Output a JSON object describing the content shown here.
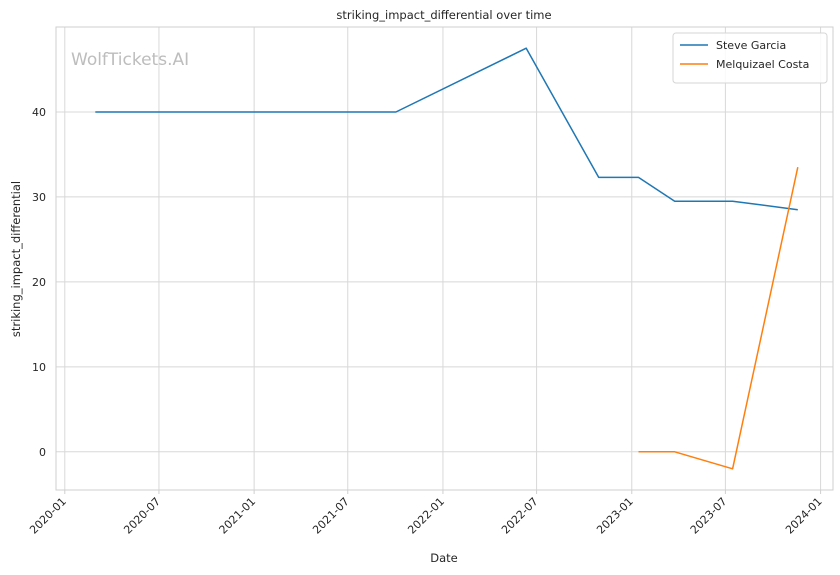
{
  "watermark": "WolfTickets.AI",
  "chart_data": {
    "type": "line",
    "title": "striking_impact_differential over time",
    "xlabel": "Date",
    "ylabel": "striking_impact_differential",
    "x_axis_type": "date",
    "xlim": [
      "2019-12-15",
      "2024-01-25"
    ],
    "ylim": [
      -4.5,
      50
    ],
    "x_ticks": [
      "2020-01",
      "2020-07",
      "2021-01",
      "2021-07",
      "2022-01",
      "2022-07",
      "2023-01",
      "2023-07",
      "2024-01"
    ],
    "x_tick_labels": [
      "2020-01",
      "2020-07",
      "2021-01",
      "2021-07",
      "2022-01",
      "2022-07",
      "2023-01",
      "2023-07",
      "2024-01"
    ],
    "y_ticks": [
      0,
      10,
      20,
      30,
      40
    ],
    "grid": true,
    "legend_position": "top-right",
    "series": [
      {
        "name": "Steve Garcia",
        "color": "#1f77b4",
        "points": [
          [
            "2020-02-29",
            40.0
          ],
          [
            "2021-10-02",
            40.0
          ],
          [
            "2022-06-11",
            47.5
          ],
          [
            "2022-10-29",
            32.3
          ],
          [
            "2023-01-14",
            32.3
          ],
          [
            "2023-03-25",
            29.5
          ],
          [
            "2023-07-15",
            29.5
          ],
          [
            "2023-11-18",
            28.5
          ]
        ]
      },
      {
        "name": "Melquizael Costa",
        "color": "#ff7f0e",
        "points": [
          [
            "2023-01-14",
            0.0
          ],
          [
            "2023-03-25",
            0.0
          ],
          [
            "2023-07-15",
            -2.0
          ],
          [
            "2023-11-18",
            33.5
          ]
        ]
      }
    ]
  }
}
